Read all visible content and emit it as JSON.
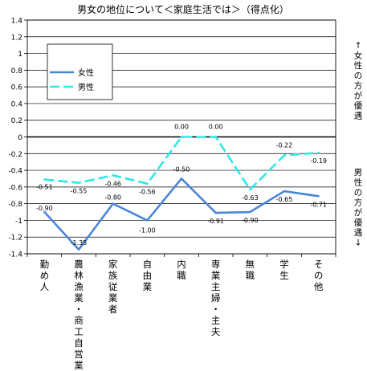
{
  "chart_data": {
    "type": "line",
    "title": "男女の地位について＜家庭生活では＞（得点化）",
    "categories": [
      "勤め人",
      "農林漁業・商工自営業",
      "家族従業者",
      "自由業",
      "内職",
      "専業主婦・主夫",
      "無職",
      "学生",
      "その他"
    ],
    "series": [
      {
        "name": "女性",
        "values": [
          -0.9,
          -1.35,
          -0.8,
          -1.0,
          -0.5,
          -0.91,
          -0.9,
          -0.65,
          -0.71
        ],
        "labels": [
          "-0.90",
          "-1.35",
          "-0.80",
          "-1.00",
          "-0.50",
          "-0.91",
          "-0.90",
          "-0.65",
          "-0.71"
        ],
        "color": "#4a86d8",
        "dash": false
      },
      {
        "name": "男性",
        "values": [
          -0.51,
          -0.55,
          -0.46,
          -0.56,
          0.0,
          0.0,
          -0.63,
          -0.22,
          -0.19
        ],
        "labels": [
          "-0.51",
          "-0.55",
          "-0.46",
          "-0.56",
          "0.00",
          "0.00",
          "-0.63",
          "-0.22",
          "-0.19"
        ],
        "color": "#2ee8e8",
        "dash": true
      }
    ],
    "y_ticks": [
      "1.4",
      "1.2",
      "1",
      "0.8",
      "0.6",
      "0.4",
      "0.2",
      "0",
      "-0.2",
      "-0.4",
      "-0.6",
      "-0.8",
      "-1",
      "-1.2",
      "-1.4"
    ],
    "ylim": [
      -1.4,
      1.4
    ],
    "grid": true,
    "legend_position": "top-left",
    "right_annotation_top": "↑女性の方が優遇",
    "right_annotation_bottom": "男性の方が優遇↓"
  }
}
